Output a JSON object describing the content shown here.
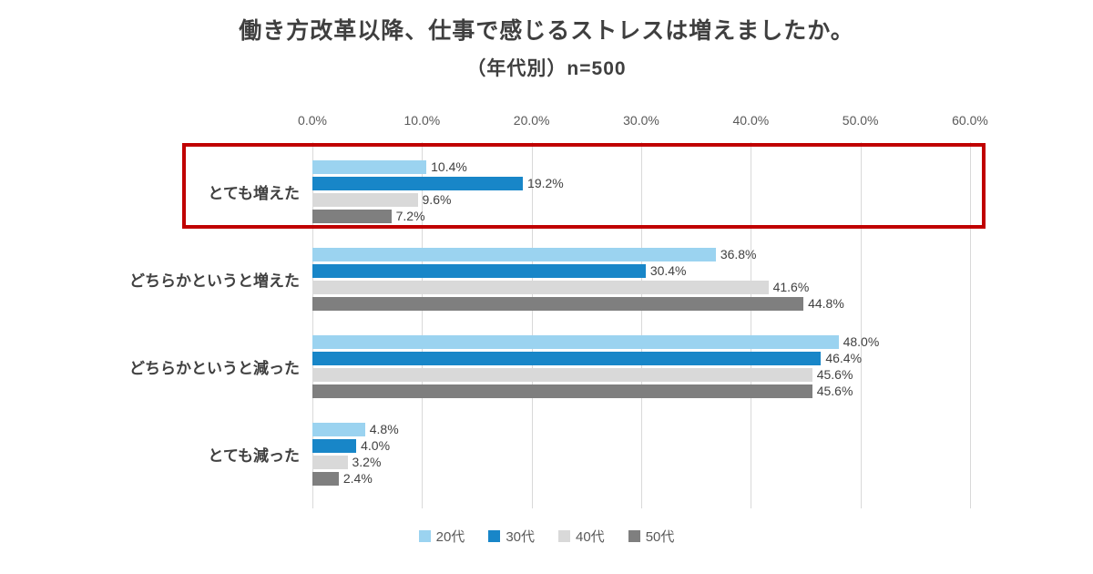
{
  "title": "働き方改革以降、仕事で感じるストレスは増えましたか。",
  "subtitle": "（年代別）n=500",
  "chart_data": {
    "type": "bar",
    "orientation": "horizontal",
    "title": "働き方改革以降、仕事で感じるストレスは増えましたか。",
    "subtitle": "（年代別）n=500",
    "n": 500,
    "categories": [
      "とても増えた",
      "どちらかというと増えた",
      "どちらかというと減った",
      "とても減った"
    ],
    "series": [
      {
        "name": "20代",
        "color": "#9bd3f0",
        "values": [
          10.4,
          36.8,
          48.0,
          4.8
        ]
      },
      {
        "name": "30代",
        "color": "#1886c8",
        "values": [
          19.2,
          30.4,
          46.4,
          4.0
        ]
      },
      {
        "name": "40代",
        "color": "#d9d9d9",
        "values": [
          9.6,
          41.6,
          45.6,
          3.2
        ]
      },
      {
        "name": "50代",
        "color": "#7f7f7f",
        "values": [
          7.2,
          44.8,
          45.6,
          2.4
        ]
      }
    ],
    "x_ticks": [
      "0.0%",
      "10.0%",
      "20.0%",
      "30.0%",
      "40.0%",
      "50.0%",
      "60.0%"
    ],
    "xlim": [
      0,
      60
    ],
    "grid": true,
    "legend_position": "bottom",
    "value_label_suffix": "%",
    "highlight": {
      "category_index": 0,
      "category_label": "とても増えた",
      "color": "#c00000"
    }
  },
  "colors": {
    "gridline": "#d9d9d9",
    "text": "#404040",
    "axis_text": "#595959",
    "highlight": "#c00000"
  }
}
